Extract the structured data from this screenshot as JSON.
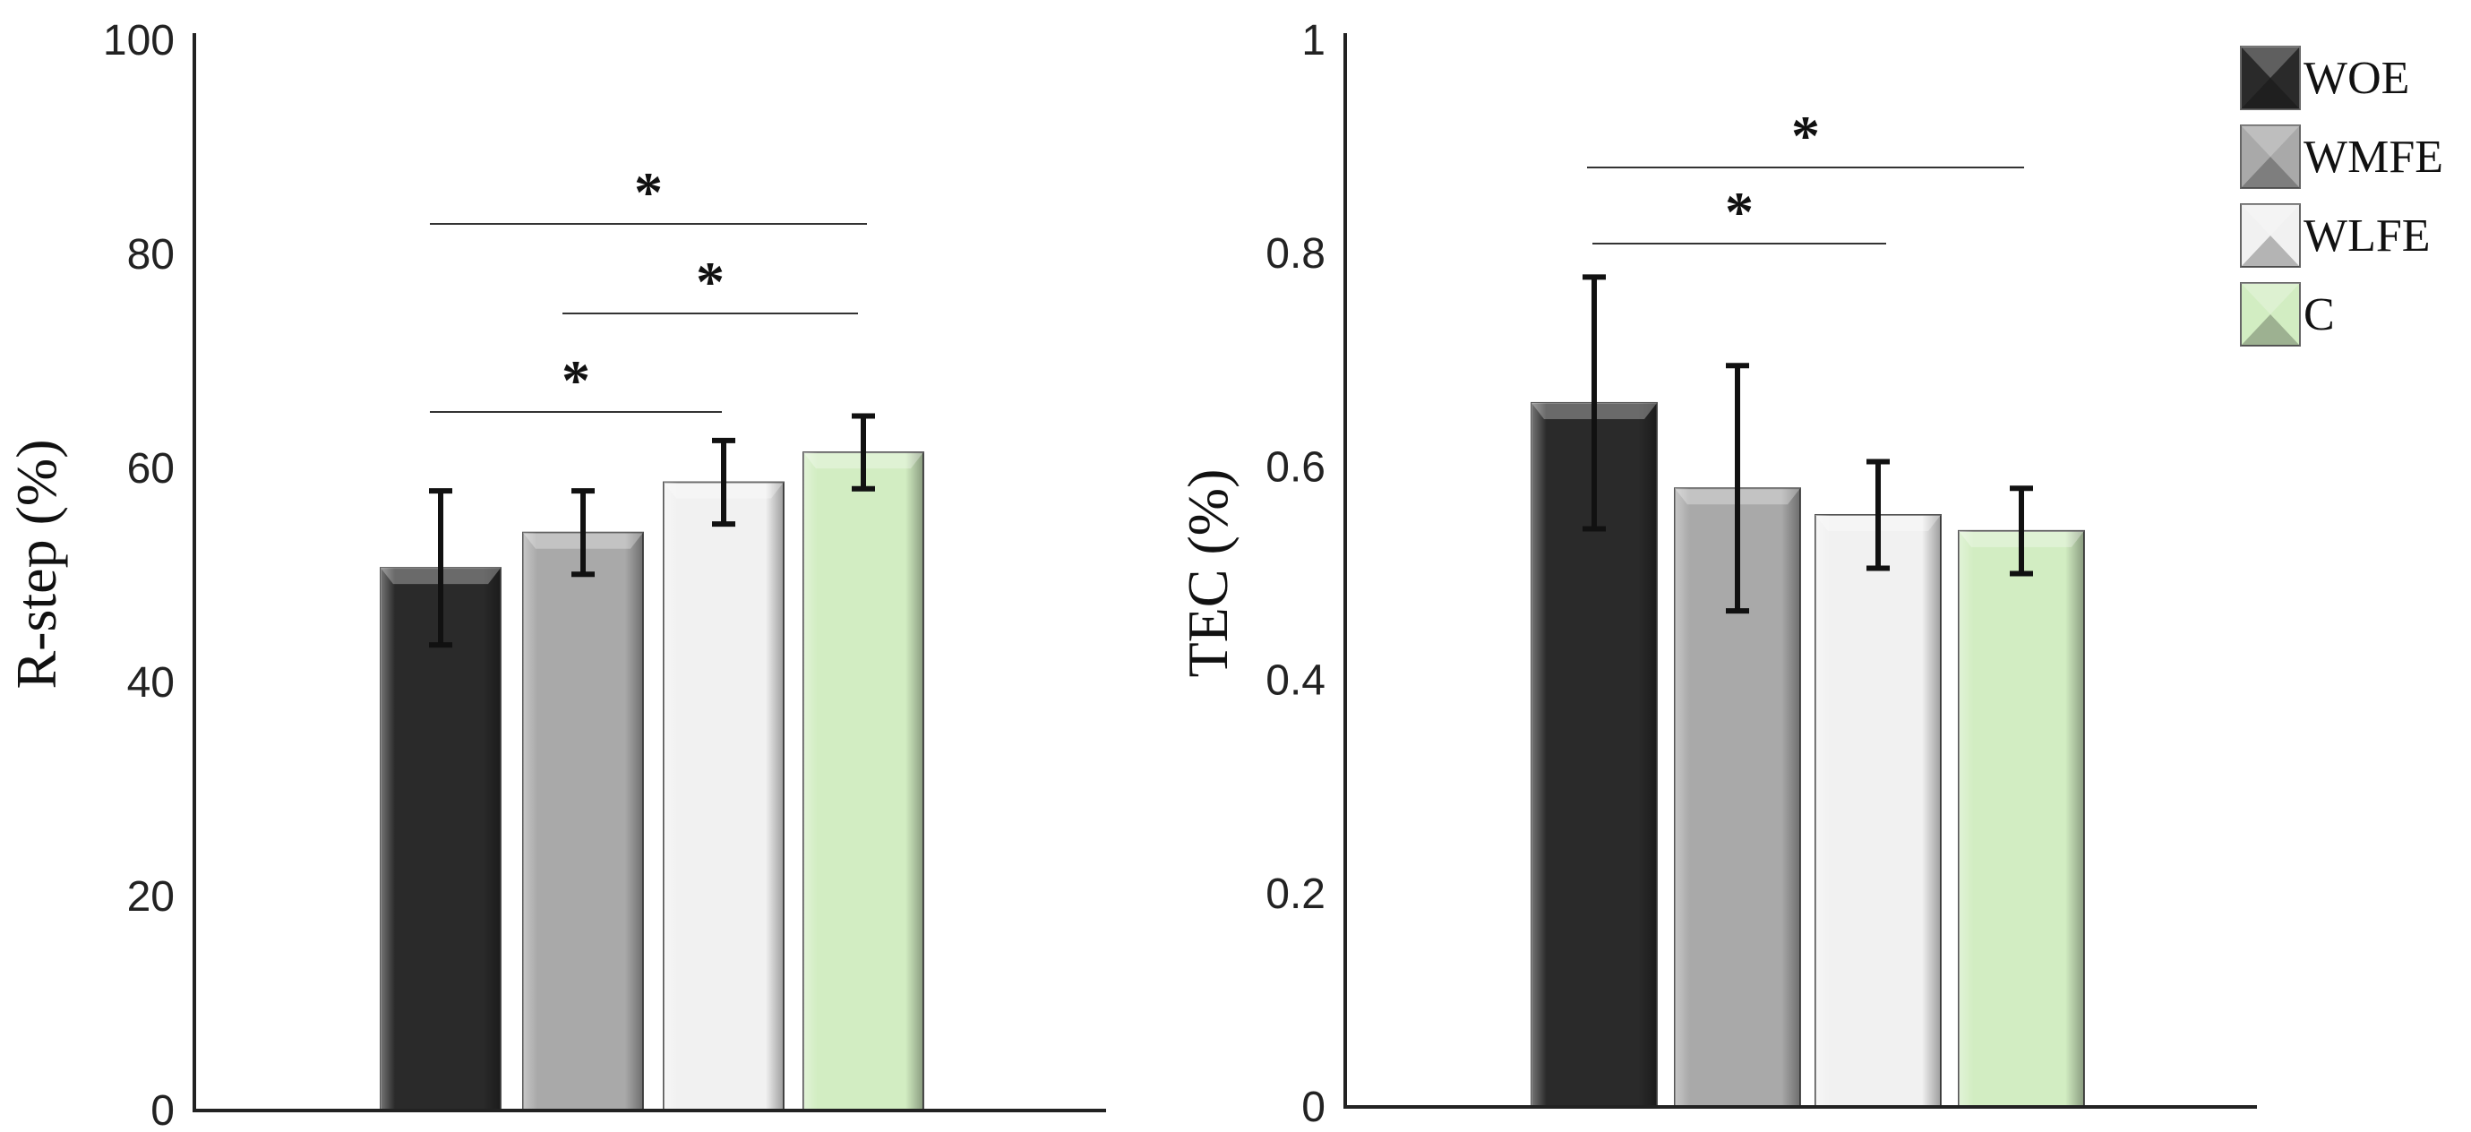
{
  "chart_data": [
    {
      "type": "bar",
      "title": "",
      "xlabel": "",
      "ylabel": "R-step (%)",
      "ylim": [
        0,
        100
      ],
      "yticks": [
        0,
        20,
        40,
        60,
        80,
        100
      ],
      "ytick_labels": [
        "0",
        "20",
        "40",
        "60",
        "80",
        "100"
      ],
      "categories": [
        "WOE",
        "WMFE",
        "WLFE",
        "C"
      ],
      "values": [
        50.7,
        54.0,
        58.7,
        61.5
      ],
      "errors": [
        7.2,
        3.9,
        3.9,
        3.4
      ],
      "significance": [
        {
          "from": "WOE",
          "to": "C",
          "label": "*"
        },
        {
          "from": "WMFE",
          "to": "C",
          "label": "*"
        },
        {
          "from": "WOE",
          "to": "WLFE",
          "label": "*"
        }
      ]
    },
    {
      "type": "bar",
      "title": "",
      "xlabel": "",
      "ylabel": "TEC (%)",
      "ylim": [
        0,
        1
      ],
      "yticks": [
        0,
        0.2,
        0.4,
        0.6,
        0.8,
        1
      ],
      "ytick_labels": [
        "0",
        "0.2",
        "0.4",
        "0.6",
        "0.8",
        "1"
      ],
      "categories": [
        "WOE",
        "WMFE",
        "WLFE",
        "C"
      ],
      "values": [
        0.66,
        0.58,
        0.555,
        0.54
      ],
      "errors": [
        0.118,
        0.115,
        0.05,
        0.04
      ],
      "significance": [
        {
          "from": "WOE",
          "to": "C",
          "label": "*"
        },
        {
          "from": "WOE",
          "to": "WLFE",
          "label": "*"
        }
      ]
    }
  ],
  "legend": {
    "placement": "top-right",
    "items": [
      {
        "label": "WOE",
        "color": "#2a2a2a"
      },
      {
        "label": "WMFE",
        "color": "#a9a9a9"
      },
      {
        "label": "WLFE",
        "color": "#f1f1f1"
      },
      {
        "label": "C",
        "color": "#d2edc2"
      }
    ]
  },
  "colors": {
    "WOE": "#2a2a2a",
    "WMFE": "#a9a9a9",
    "WLFE": "#f1f1f1",
    "C": "#d2edc2",
    "axis": "#222222",
    "error_bar": "#111111"
  }
}
